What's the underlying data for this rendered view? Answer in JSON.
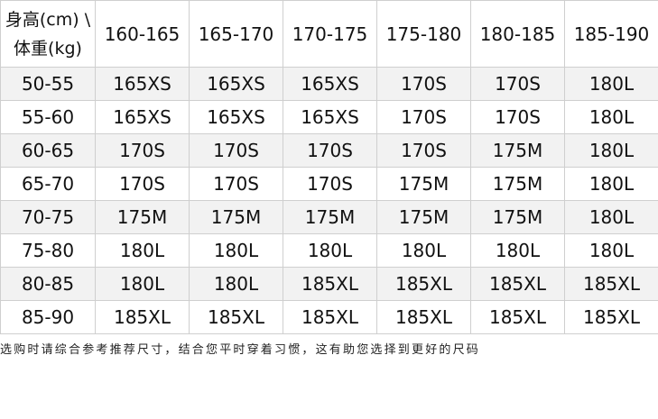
{
  "table": {
    "corner_line1": "身高(cm) \\",
    "corner_line2": "体重(kg)",
    "height_headers": [
      "160-165",
      "165-170",
      "170-175",
      "175-180",
      "180-185",
      "185-190"
    ],
    "rows": [
      {
        "weight": "50-55",
        "sizes": [
          "165XS",
          "165XS",
          "165XS",
          "170S",
          "170S",
          "180L"
        ]
      },
      {
        "weight": "55-60",
        "sizes": [
          "165XS",
          "165XS",
          "165XS",
          "170S",
          "170S",
          "180L"
        ]
      },
      {
        "weight": "60-65",
        "sizes": [
          "170S",
          "170S",
          "170S",
          "170S",
          "175M",
          "180L"
        ]
      },
      {
        "weight": "65-70",
        "sizes": [
          "170S",
          "170S",
          "170S",
          "175M",
          "175M",
          "180L"
        ]
      },
      {
        "weight": "70-75",
        "sizes": [
          "175M",
          "175M",
          "175M",
          "175M",
          "175M",
          "180L"
        ]
      },
      {
        "weight": "75-80",
        "sizes": [
          "180L",
          "180L",
          "180L",
          "180L",
          "180L",
          "180L"
        ]
      },
      {
        "weight": "80-85",
        "sizes": [
          "180L",
          "180L",
          "185XL",
          "185XL",
          "185XL",
          "185XL"
        ]
      },
      {
        "weight": "85-90",
        "sizes": [
          "185XL",
          "185XL",
          "185XL",
          "185XL",
          "185XL",
          "185XL"
        ]
      }
    ]
  },
  "footer_note": "选购时请综合参考推荐尺寸，结合您平时穿着习惯，这有助您选择到更好的尺码",
  "colors": {
    "shaded_row": "#f2f2f2",
    "border": "#cfcfcf"
  }
}
